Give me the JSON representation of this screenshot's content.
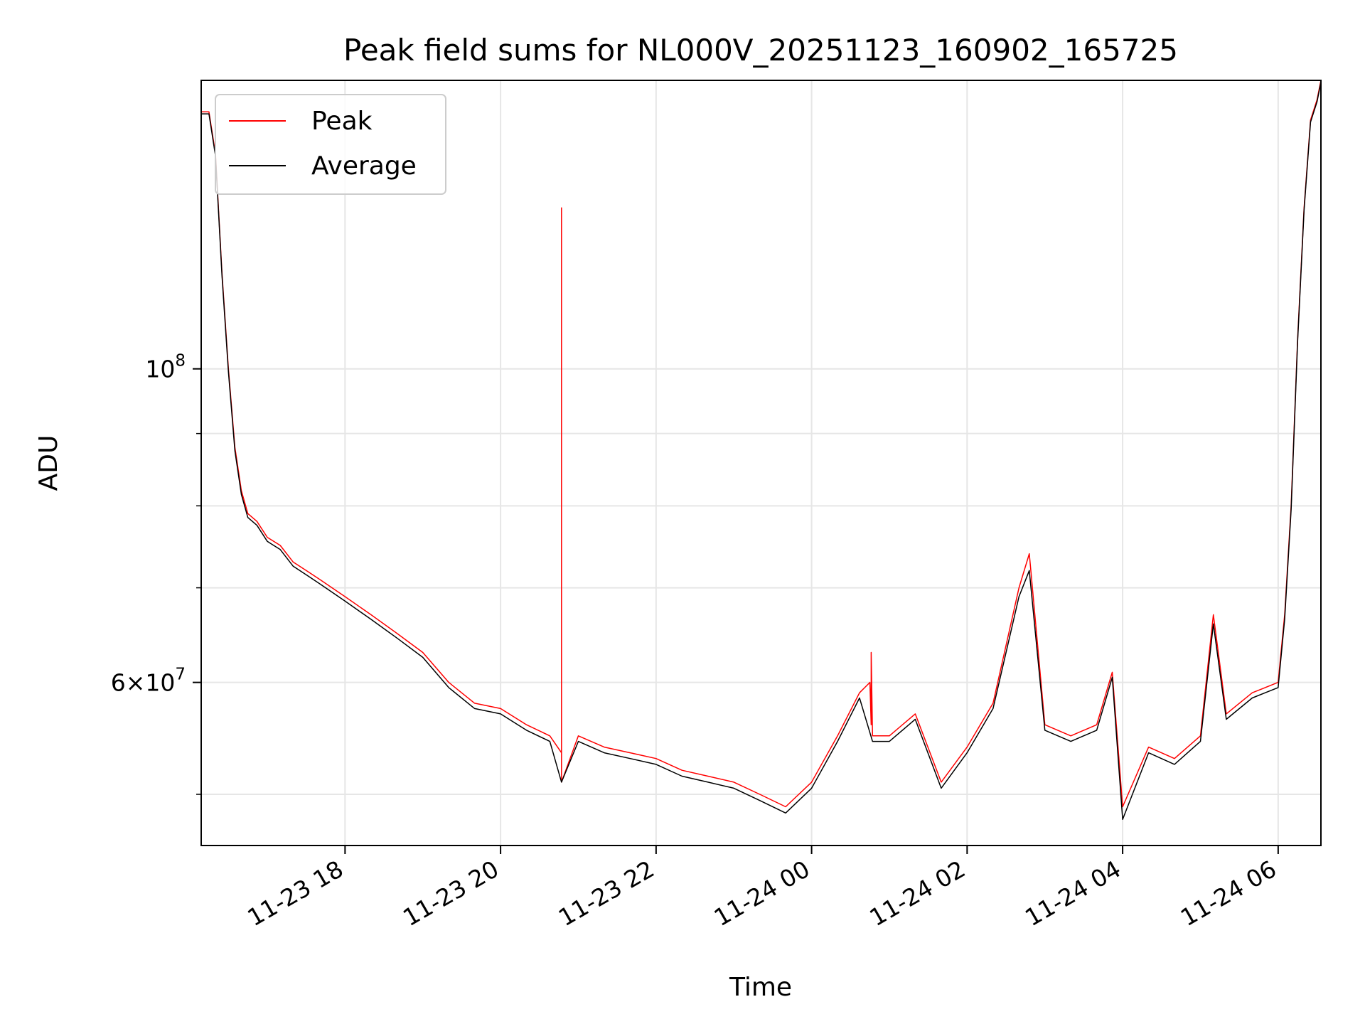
{
  "chart_data": {
    "type": "line",
    "title": "Peak field sums for NL000V_20251123_160902_165725",
    "xlabel": "Time",
    "ylabel": "ADU",
    "yscale": "log",
    "grid": true,
    "legend_position": "top-left",
    "xlim": [
      "2025-11-23 16:09",
      "2025-11-24 06:33"
    ],
    "ylim": [
      46000000,
      160000000
    ],
    "x_ticks": [
      {
        "value": "2025-11-23 18:00",
        "label": "11-23 18"
      },
      {
        "value": "2025-11-23 20:00",
        "label": "11-23 20"
      },
      {
        "value": "2025-11-23 22:00",
        "label": "11-23 22"
      },
      {
        "value": "2025-11-24 00:00",
        "label": "11-24 00"
      },
      {
        "value": "2025-11-24 02:00",
        "label": "11-24 02"
      },
      {
        "value": "2025-11-24 04:00",
        "label": "11-24 04"
      },
      {
        "value": "2025-11-24 06:00",
        "label": "11-24 06"
      }
    ],
    "y_ticks_major": [
      {
        "value": 60000000,
        "mantissa": "6",
        "exponent": "7"
      },
      {
        "value": 100000000,
        "mantissa": "",
        "exponent": "8"
      }
    ],
    "y_ticks_minor": [
      50000000,
      70000000,
      80000000,
      90000000
    ],
    "series": [
      {
        "name": "Peak",
        "color": "#ff0000",
        "x": [
          "2025-11-23 16:09",
          "2025-11-23 16:15",
          "2025-11-23 16:20",
          "2025-11-23 16:25",
          "2025-11-23 16:30",
          "2025-11-23 16:35",
          "2025-11-23 16:40",
          "2025-11-23 16:45",
          "2025-11-23 16:52",
          "2025-11-23 17:00",
          "2025-11-23 17:10",
          "2025-11-23 17:20",
          "2025-11-23 17:30",
          "2025-11-23 17:40",
          "2025-11-23 18:00",
          "2025-11-23 18:20",
          "2025-11-23 18:40",
          "2025-11-23 19:00",
          "2025-11-23 19:20",
          "2025-11-23 19:40",
          "2025-11-23 20:00",
          "2025-11-23 20:20",
          "2025-11-23 20:38",
          "2025-11-23 20:47",
          "2025-11-23 20:47",
          "2025-11-23 20:47",
          "2025-11-23 21:00",
          "2025-11-23 21:20",
          "2025-11-23 21:40",
          "2025-11-23 22:00",
          "2025-11-23 22:20",
          "2025-11-23 22:40",
          "2025-11-23 23:00",
          "2025-11-23 23:20",
          "2025-11-23 23:40",
          "2025-11-24 00:00",
          "2025-11-24 00:20",
          "2025-11-24 00:37",
          "2025-11-24 00:45",
          "2025-11-24 00:46",
          "2025-11-24 00:46",
          "2025-11-24 00:47",
          "2025-11-24 01:00",
          "2025-11-24 01:20",
          "2025-11-24 01:40",
          "2025-11-24 02:00",
          "2025-11-24 02:20",
          "2025-11-24 02:40",
          "2025-11-24 02:48",
          "2025-11-24 03:00",
          "2025-11-24 03:20",
          "2025-11-24 03:40",
          "2025-11-24 03:52",
          "2025-11-24 04:00",
          "2025-11-24 04:20",
          "2025-11-24 04:40",
          "2025-11-24 05:00",
          "2025-11-24 05:10",
          "2025-11-24 05:20",
          "2025-11-24 05:40",
          "2025-11-24 06:00",
          "2025-11-24 06:05",
          "2025-11-24 06:10",
          "2025-11-24 06:15",
          "2025-11-24 06:20",
          "2025-11-24 06:25",
          "2025-11-24 06:30",
          "2025-11-24 06:33"
        ],
        "values": [
          152000000,
          152000000,
          142000000,
          117000000,
          100000000,
          88000000,
          82000000,
          79000000,
          78000000,
          76000000,
          75000000,
          73000000,
          72000000,
          71000000,
          69000000,
          67000000,
          65000000,
          63000000,
          60000000,
          58000000,
          57500000,
          56000000,
          55000000,
          53500000,
          130000000,
          51000000,
          55000000,
          54000000,
          53500000,
          53000000,
          52000000,
          51500000,
          51000000,
          50000000,
          49000000,
          51000000,
          55000000,
          59000000,
          60000000,
          56000000,
          63000000,
          55000000,
          55000000,
          57000000,
          51000000,
          54000000,
          58000000,
          70000000,
          74000000,
          56000000,
          55000000,
          56000000,
          61000000,
          49000000,
          54000000,
          53000000,
          55000000,
          67000000,
          57000000,
          59000000,
          60000000,
          67000000,
          80000000,
          105000000,
          130000000,
          150000000,
          155000000,
          160000000
        ]
      },
      {
        "name": "Average",
        "color": "#000000",
        "x": [
          "2025-11-23 16:09",
          "2025-11-23 16:15",
          "2025-11-23 16:20",
          "2025-11-23 16:25",
          "2025-11-23 16:30",
          "2025-11-23 16:35",
          "2025-11-23 16:40",
          "2025-11-23 16:45",
          "2025-11-23 16:52",
          "2025-11-23 17:00",
          "2025-11-23 17:10",
          "2025-11-23 17:20",
          "2025-11-23 17:30",
          "2025-11-23 17:40",
          "2025-11-23 18:00",
          "2025-11-23 18:20",
          "2025-11-23 18:40",
          "2025-11-23 19:00",
          "2025-11-23 19:20",
          "2025-11-23 19:40",
          "2025-11-23 20:00",
          "2025-11-23 20:20",
          "2025-11-23 20:38",
          "2025-11-23 20:47",
          "2025-11-23 21:00",
          "2025-11-23 21:20",
          "2025-11-23 21:40",
          "2025-11-23 22:00",
          "2025-11-23 22:20",
          "2025-11-23 22:40",
          "2025-11-23 23:00",
          "2025-11-23 23:20",
          "2025-11-23 23:40",
          "2025-11-24 00:00",
          "2025-11-24 00:20",
          "2025-11-24 00:37",
          "2025-11-24 00:47",
          "2025-11-24 01:00",
          "2025-11-24 01:20",
          "2025-11-24 01:40",
          "2025-11-24 02:00",
          "2025-11-24 02:20",
          "2025-11-24 02:40",
          "2025-11-24 02:48",
          "2025-11-24 03:00",
          "2025-11-24 03:20",
          "2025-11-24 03:40",
          "2025-11-24 03:52",
          "2025-11-24 04:00",
          "2025-11-24 04:20",
          "2025-11-24 04:40",
          "2025-11-24 05:00",
          "2025-11-24 05:10",
          "2025-11-24 05:20",
          "2025-11-24 05:40",
          "2025-11-24 06:00",
          "2025-11-24 06:05",
          "2025-11-24 06:10",
          "2025-11-24 06:15",
          "2025-11-24 06:20",
          "2025-11-24 06:25",
          "2025-11-24 06:30",
          "2025-11-24 06:33"
        ],
        "values": [
          151500000,
          151500000,
          141500000,
          116500000,
          99500000,
          87500000,
          81500000,
          78500000,
          77500000,
          75500000,
          74500000,
          72500000,
          71500000,
          70500000,
          68500000,
          66500000,
          64500000,
          62500000,
          59500000,
          57500000,
          57000000,
          55500000,
          54500000,
          51000000,
          54500000,
          53500000,
          53000000,
          52500000,
          51500000,
          51000000,
          50500000,
          49500000,
          48500000,
          50500000,
          54500000,
          58500000,
          54500000,
          54500000,
          56500000,
          50500000,
          53500000,
          57500000,
          69000000,
          72000000,
          55500000,
          54500000,
          55500000,
          60500000,
          48000000,
          53500000,
          52500000,
          54500000,
          66000000,
          56500000,
          58500000,
          59500000,
          66500000,
          79500000,
          104500000,
          129500000,
          149500000,
          154500000,
          159500000
        ]
      }
    ]
  }
}
